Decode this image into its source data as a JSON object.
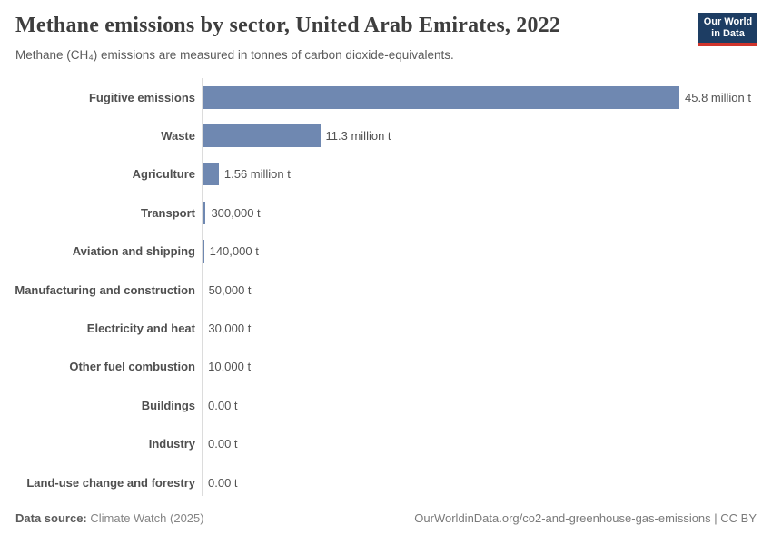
{
  "header": {
    "title": "Methane emissions by sector, United Arab Emirates, 2022",
    "subtitle": "Methane (CH₄) emissions are measured in tonnes of carbon dioxide-equivalents."
  },
  "logo": {
    "line1": "Our World",
    "line2": "in Data",
    "bg_color": "#1d3d63",
    "accent_color": "#d0342c"
  },
  "chart_data": {
    "type": "bar",
    "orientation": "horizontal",
    "title": "Methane emissions by sector, United Arab Emirates, 2022",
    "categories": [
      "Fugitive emissions",
      "Waste",
      "Agriculture",
      "Transport",
      "Aviation and shipping",
      "Manufacturing and construction",
      "Electricity and heat",
      "Other fuel combustion",
      "Buildings",
      "Industry",
      "Land-use change and forestry"
    ],
    "values": [
      45800000,
      11300000,
      1560000,
      300000,
      140000,
      50000,
      30000,
      10000,
      0,
      0,
      0
    ],
    "value_labels": [
      "45.8 million t",
      "11.3 million t",
      "1.56 million t",
      "300,000 t",
      "140,000 t",
      "50,000 t",
      "30,000 t",
      "10,000 t",
      "0.00 t",
      "0.00 t",
      "0.00 t"
    ],
    "xlim": [
      0,
      45800000
    ],
    "bar_color": "#6f88b1",
    "axis_color": "#dcdcdc",
    "grid": false,
    "legend": "none"
  },
  "footer": {
    "datasource_label": "Data source:",
    "datasource_value": " Climate Watch (2025)",
    "rights": "OurWorldinData.org/co2-and-greenhouse-gas-emissions | CC BY"
  }
}
